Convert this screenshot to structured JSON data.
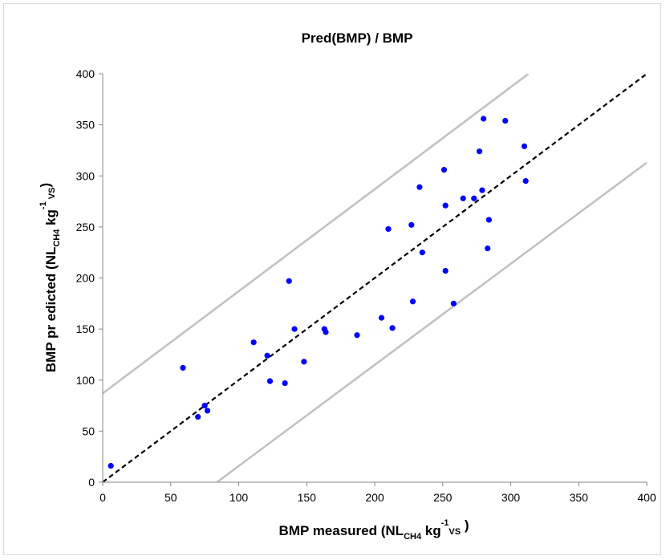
{
  "chart_data": {
    "type": "scatter",
    "title": "Pred(BMP) / BMP",
    "xlabel": {
      "parts": [
        "BMP measured (NL",
        "CH4",
        " kg",
        "-1",
        "VS",
        " )"
      ]
    },
    "ylabel": {
      "parts": [
        "BMP pr edicted (NL",
        "CH4",
        " kg",
        "-1",
        " VS",
        ")"
      ]
    },
    "xlim": [
      0,
      400
    ],
    "ylim": [
      0,
      400
    ],
    "xticks": [
      0,
      50,
      100,
      150,
      200,
      250,
      300,
      350,
      400
    ],
    "yticks": [
      0,
      50,
      100,
      150,
      200,
      250,
      300,
      350,
      400
    ],
    "grid": false,
    "colors": {
      "points": "#0000ff",
      "identity_line": "#000000",
      "bound_lines": "#c0c0c0",
      "axis": "#888888"
    },
    "identity_line": {
      "x": [
        0,
        400
      ],
      "y": [
        0,
        400
      ],
      "style": "dashed"
    },
    "upper_bound": {
      "x": [
        0,
        313
      ],
      "y": [
        87,
        400
      ],
      "style": "solid"
    },
    "lower_bound": {
      "x": [
        84,
        400
      ],
      "y": [
        0,
        313
      ],
      "style": "solid"
    },
    "points": {
      "x": [
        6,
        59,
        70,
        75,
        77,
        111,
        121,
        123,
        134,
        137,
        141,
        148,
        163,
        164,
        187,
        205,
        210,
        213,
        227,
        228,
        233,
        235,
        251,
        252,
        252,
        258,
        265,
        273,
        277,
        279,
        280,
        283,
        284,
        296,
        310,
        311
      ],
      "y": [
        16,
        112,
        64,
        75,
        70,
        137,
        124,
        99,
        97,
        197,
        150,
        118,
        150,
        147,
        144,
        161,
        248,
        151,
        252,
        177,
        289,
        225,
        306,
        207,
        271,
        175,
        278,
        278,
        324,
        286,
        356,
        229,
        257,
        354,
        329,
        295
      ]
    }
  }
}
